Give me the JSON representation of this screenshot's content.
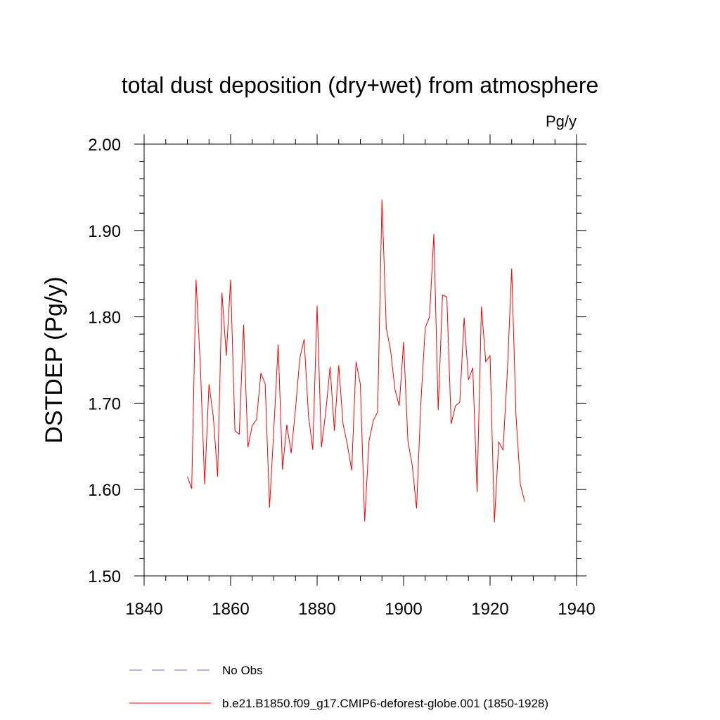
{
  "chart_data": {
    "type": "line",
    "title": "total dust deposition (dry+wet) from atmosphere",
    "units_label": "Pg/y",
    "xlabel": "",
    "ylabel": "DSTDEP  (Pg/y)",
    "xlim": [
      1840,
      1940
    ],
    "ylim": [
      1.5,
      2.0
    ],
    "xticks": [
      "1840",
      "1860",
      "1880",
      "1900",
      "1920",
      "1940"
    ],
    "yticks": [
      "1.50",
      "1.60",
      "1.70",
      "1.80",
      "1.90",
      "2.00"
    ],
    "grid": false,
    "legend_position": "bottom",
    "series": [
      {
        "name": "b.e21.B1850.f09_g17.CMIP6-deforest-globe.001 (1850-1928)",
        "color": "#ff0000",
        "style": "solid",
        "x": [
          1850,
          1851,
          1852,
          1853,
          1854,
          1855,
          1856,
          1857,
          1858,
          1859,
          1860,
          1861,
          1862,
          1863,
          1864,
          1865,
          1866,
          1867,
          1868,
          1869,
          1870,
          1871,
          1872,
          1873,
          1874,
          1875,
          1876,
          1877,
          1878,
          1879,
          1880,
          1881,
          1882,
          1883,
          1884,
          1885,
          1886,
          1887,
          1888,
          1889,
          1890,
          1891,
          1892,
          1893,
          1894,
          1895,
          1896,
          1897,
          1898,
          1899,
          1900,
          1901,
          1902,
          1903,
          1904,
          1905,
          1906,
          1907,
          1908,
          1909,
          1910,
          1911,
          1912,
          1913,
          1914,
          1915,
          1916,
          1917,
          1918,
          1919,
          1920,
          1921,
          1922,
          1923,
          1924,
          1925,
          1926,
          1927,
          1928
        ],
        "values": [
          1.615,
          1.601,
          1.843,
          1.744,
          1.606,
          1.722,
          1.684,
          1.615,
          1.828,
          1.755,
          1.843,
          1.668,
          1.664,
          1.791,
          1.649,
          1.674,
          1.681,
          1.735,
          1.722,
          1.579,
          1.671,
          1.768,
          1.623,
          1.675,
          1.642,
          1.693,
          1.752,
          1.774,
          1.686,
          1.646,
          1.813,
          1.649,
          1.69,
          1.742,
          1.668,
          1.744,
          1.676,
          1.652,
          1.622,
          1.748,
          1.722,
          1.563,
          1.656,
          1.68,
          1.69,
          1.936,
          1.787,
          1.761,
          1.716,
          1.697,
          1.771,
          1.656,
          1.628,
          1.578,
          1.701,
          1.787,
          1.8,
          1.896,
          1.692,
          1.825,
          1.823,
          1.676,
          1.697,
          1.701,
          1.799,
          1.727,
          1.741,
          1.597,
          1.812,
          1.748,
          1.755,
          1.562,
          1.655,
          1.646,
          1.737,
          1.856,
          1.685,
          1.606,
          1.586
        ]
      },
      {
        "name": "No Obs",
        "color": "#7b68c8",
        "style": "dashed",
        "x": [],
        "values": []
      }
    ]
  }
}
